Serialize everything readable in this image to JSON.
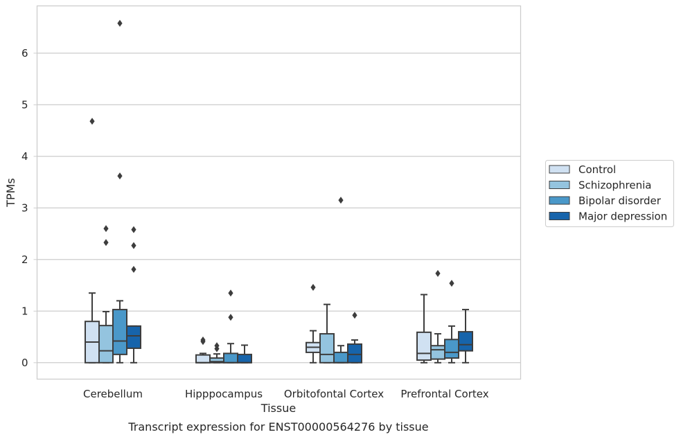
{
  "caption": "Transcript expression for ENST00000564276 by tissue",
  "chart_data": {
    "type": "boxplot",
    "xlabel": "Tissue",
    "ylabel": "TPMs",
    "ylim": [
      -0.32,
      6.9
    ],
    "yticks": [
      0,
      1,
      2,
      3,
      4,
      5,
      6
    ],
    "grid": true,
    "legend_position": "right",
    "categories": [
      "Cerebellum",
      "Hipppocampus",
      "Orbitofontal Cortex",
      "Prefrontal Cortex"
    ],
    "series": [
      {
        "name": "Control",
        "color": "#d0e1f2",
        "boxes": [
          {
            "whislo": 0,
            "q1": 0,
            "med": 0.4,
            "q3": 0.8,
            "whishi": 1.35,
            "fliers": [
              4.68
            ]
          },
          {
            "whislo": 0,
            "q1": 0,
            "med": 0,
            "q3": 0.15,
            "whishi": 0.18,
            "fliers": [
              0.41,
              0.44
            ]
          },
          {
            "whislo": 0,
            "q1": 0.2,
            "med": 0.3,
            "q3": 0.39,
            "whishi": 0.62,
            "fliers": [
              1.46
            ]
          },
          {
            "whislo": 0,
            "q1": 0.05,
            "med": 0.18,
            "q3": 0.59,
            "whishi": 1.32,
            "fliers": []
          }
        ]
      },
      {
        "name": "Schizophrenia",
        "color": "#94c4df",
        "boxes": [
          {
            "whislo": 0,
            "q1": 0,
            "med": 0.23,
            "q3": 0.72,
            "whishi": 0.99,
            "fliers": [
              2.33,
              2.6
            ]
          },
          {
            "whislo": 0,
            "q1": 0,
            "med": 0.02,
            "q3": 0.09,
            "whishi": 0.17,
            "fliers": [
              0.27,
              0.33
            ]
          },
          {
            "whislo": 0,
            "q1": 0,
            "med": 0.16,
            "q3": 0.56,
            "whishi": 1.13,
            "fliers": []
          },
          {
            "whislo": 0,
            "q1": 0.07,
            "med": 0.25,
            "q3": 0.33,
            "whishi": 0.56,
            "fliers": [
              1.73
            ]
          }
        ]
      },
      {
        "name": "Bipolar disorder",
        "color": "#4a98c9",
        "boxes": [
          {
            "whislo": 0,
            "q1": 0.16,
            "med": 0.42,
            "q3": 1.03,
            "whishi": 1.2,
            "fliers": [
              3.62,
              6.58
            ]
          },
          {
            "whislo": 0,
            "q1": 0,
            "med": 0,
            "q3": 0.18,
            "whishi": 0.37,
            "fliers": [
              0.88,
              1.35
            ]
          },
          {
            "whislo": 0,
            "q1": 0,
            "med": 0,
            "q3": 0.2,
            "whishi": 0.33,
            "fliers": [
              3.15
            ]
          },
          {
            "whislo": 0,
            "q1": 0.09,
            "med": 0.2,
            "q3": 0.45,
            "whishi": 0.71,
            "fliers": [
              1.54
            ]
          }
        ]
      },
      {
        "name": "Major depression",
        "color": "#1764ab",
        "boxes": [
          {
            "whislo": 0,
            "q1": 0.28,
            "med": 0.52,
            "q3": 0.71,
            "whishi": 0.71,
            "fliers": [
              1.81,
              2.27,
              2.58
            ]
          },
          {
            "whislo": 0,
            "q1": 0,
            "med": 0,
            "q3": 0.16,
            "whishi": 0.34,
            "fliers": []
          },
          {
            "whislo": 0,
            "q1": 0,
            "med": 0.16,
            "q3": 0.36,
            "whishi": 0.44,
            "fliers": [
              0.92
            ]
          },
          {
            "whislo": 0,
            "q1": 0.23,
            "med": 0.35,
            "q3": 0.6,
            "whishi": 1.03,
            "fliers": []
          }
        ]
      }
    ]
  }
}
